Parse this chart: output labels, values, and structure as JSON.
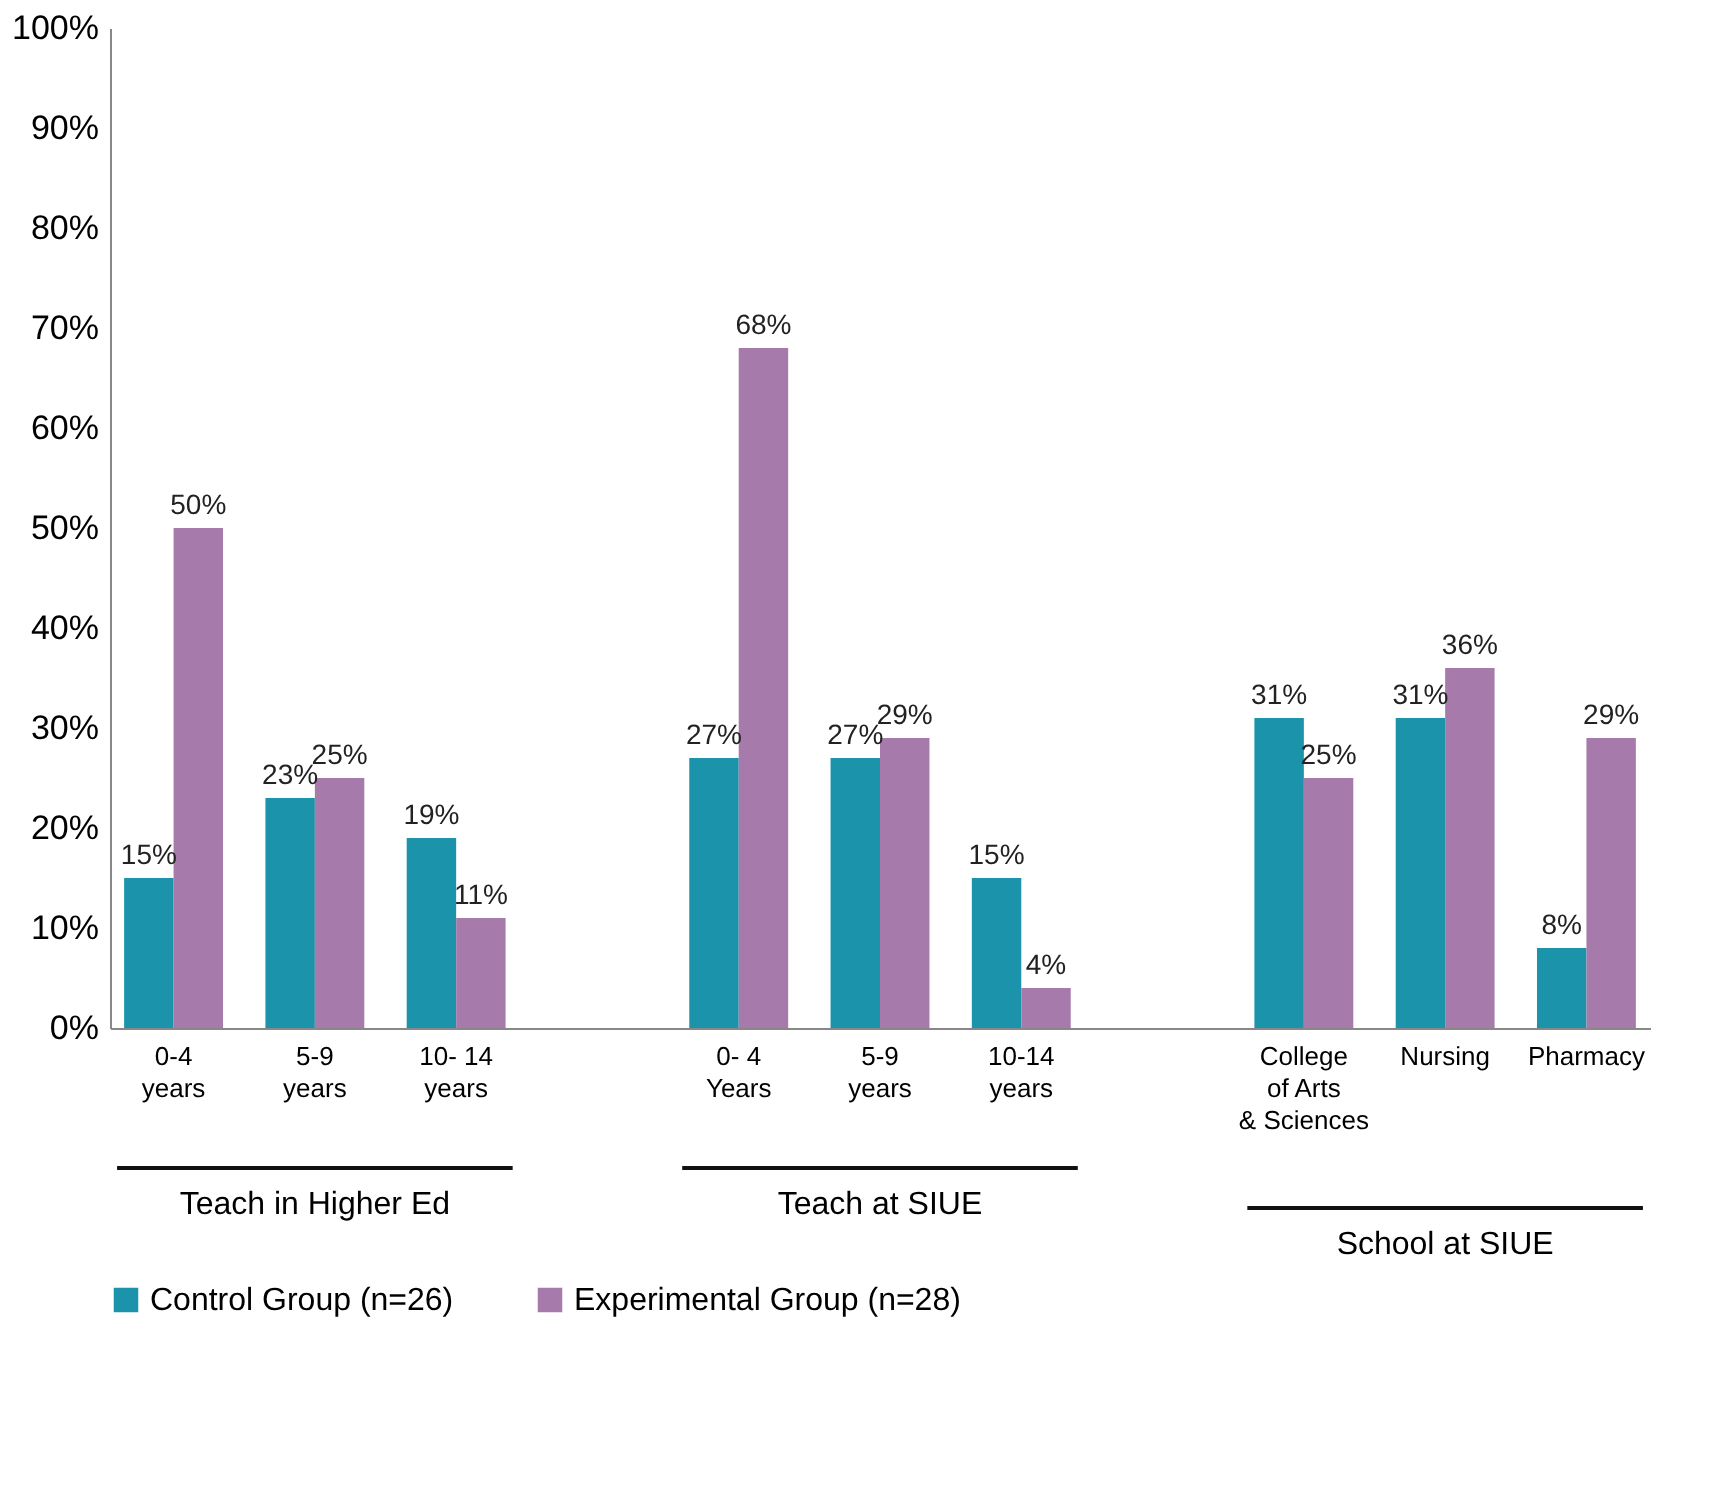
{
  "chart_data": {
    "type": "bar",
    "categories": [
      "0-4\nyears",
      "5-9\nyears",
      "10- 14\nyears",
      null,
      "0- 4\nYears",
      "5-9\nyears",
      "10-14\nyears",
      null,
      "College\nof Arts\n& Sciences",
      "Nursing",
      "Pharmacy"
    ],
    "series": [
      {
        "name": "Control Group (n=26)",
        "color": "#1a93ab",
        "values": [
          15,
          23,
          19,
          null,
          27,
          27,
          15,
          null,
          31,
          31,
          8
        ],
        "value_labels": [
          "15%",
          "23%",
          "19%",
          null,
          "27%",
          "27%",
          "15%",
          null,
          "31%",
          "31%",
          "8%"
        ]
      },
      {
        "name": "Experimental Group (n=28)",
        "color": "#a67bab",
        "values": [
          50,
          25,
          11,
          null,
          68,
          29,
          4,
          null,
          25,
          36,
          29
        ],
        "value_labels": [
          "50%",
          "25%",
          "11%",
          null,
          "68%",
          "29%",
          "4%",
          null,
          "25%",
          "36%",
          "29%"
        ]
      }
    ],
    "ylim": [
      0,
      100
    ],
    "yticks": [
      {
        "value": 0,
        "label": "0%"
      },
      {
        "value": 10,
        "label": "10%"
      },
      {
        "value": 20,
        "label": "20%"
      },
      {
        "value": 30,
        "label": "30%"
      },
      {
        "value": 40,
        "label": "40%"
      },
      {
        "value": 50,
        "label": "50%"
      },
      {
        "value": 60,
        "label": "60%"
      },
      {
        "value": 70,
        "label": "70%"
      },
      {
        "value": 80,
        "label": "80%"
      },
      {
        "value": 90,
        "label": "90%"
      },
      {
        "value": 100,
        "label": "100%"
      }
    ],
    "annotations": [
      "Teach in Higher Ed",
      "Teach at SIUE",
      "School at SIUE"
    ],
    "legend": "bottom"
  }
}
